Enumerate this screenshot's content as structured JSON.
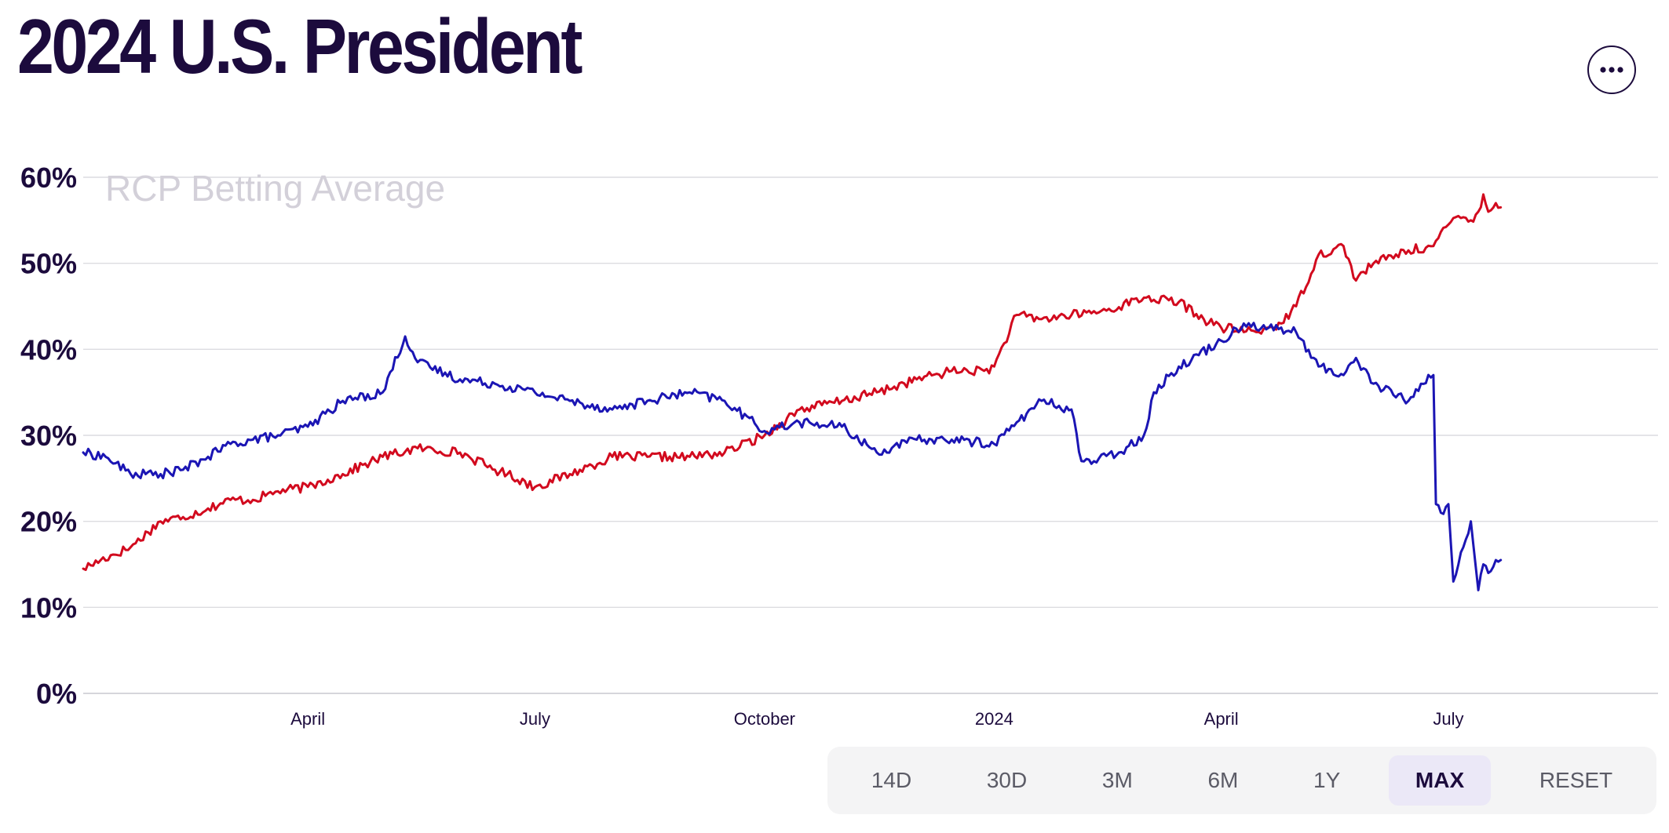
{
  "header": {
    "title": "2024 U.S. President",
    "more_icon": "ellipsis-icon"
  },
  "range_selector": {
    "buttons": [
      "14D",
      "30D",
      "3M",
      "6M",
      "1Y",
      "MAX",
      "RESET"
    ],
    "active": "MAX"
  },
  "chart_data": {
    "type": "line",
    "title": "RCP Betting Average",
    "xlabel": "",
    "ylabel": "",
    "ylim": [
      0,
      60
    ],
    "y_ticks": [
      "0%",
      "10%",
      "20%",
      "30%",
      "40%",
      "50%",
      "60%"
    ],
    "x_tick_labels": [
      "April",
      "July",
      "October",
      "2024",
      "April",
      "July"
    ],
    "x_tick_dates": [
      "2023-04-01",
      "2023-07-01",
      "2023-10-01",
      "2024-01-01",
      "2024-04-01",
      "2024-07-01"
    ],
    "x_range": [
      "2023-01-01",
      "2024-09-23"
    ],
    "grid": true,
    "legend": "none",
    "series": [
      {
        "color": "#d20a1e",
        "x": [
          "2023-01-01",
          "2023-01-08",
          "2023-01-20",
          "2023-02-01",
          "2023-02-10",
          "2023-02-20",
          "2023-03-01",
          "2023-03-10",
          "2023-03-20",
          "2023-04-01",
          "2023-04-15",
          "2023-05-01",
          "2023-05-15",
          "2023-06-01",
          "2023-06-15",
          "2023-06-20",
          "2023-07-01",
          "2023-07-15",
          "2023-08-01",
          "2023-08-15",
          "2023-09-01",
          "2023-09-15",
          "2023-10-01",
          "2023-10-15",
          "2023-11-01",
          "2023-11-15",
          "2023-12-01",
          "2023-12-15",
          "2023-12-28",
          "2024-01-01",
          "2024-01-10",
          "2024-01-20",
          "2024-02-01",
          "2024-02-15",
          "2024-03-01",
          "2024-03-15",
          "2024-03-25",
          "2024-04-01",
          "2024-04-15",
          "2024-04-25",
          "2024-05-01",
          "2024-05-10",
          "2024-05-20",
          "2024-05-25",
          "2024-05-28",
          "2024-06-01",
          "2024-06-15",
          "2024-06-25",
          "2024-07-01",
          "2024-07-05",
          "2024-07-10",
          "2024-07-13",
          "2024-07-15",
          "2024-07-17",
          "2024-07-20",
          "2024-07-22"
        ],
        "values": [
          14.5,
          15.5,
          17,
          20,
          20.5,
          21.5,
          22.5,
          22.5,
          23.5,
          24,
          25.5,
          27.5,
          28.5,
          28,
          26,
          25.5,
          24,
          25.5,
          27.5,
          27.5,
          27.5,
          28,
          30,
          33,
          34,
          35,
          36.5,
          37.5,
          37.5,
          38,
          44,
          43.5,
          44,
          44.5,
          46,
          45.5,
          43.5,
          42.5,
          42,
          43,
          45,
          51,
          52,
          48,
          49,
          50,
          51.5,
          52,
          54.5,
          55.5,
          55,
          56,
          58,
          56,
          57,
          56.5
        ]
      },
      {
        "color": "#1b15b4",
        "x": [
          "2023-01-01",
          "2023-01-10",
          "2023-01-20",
          "2023-02-01",
          "2023-02-10",
          "2023-02-20",
          "2023-03-01",
          "2023-03-10",
          "2023-03-20",
          "2023-04-01",
          "2023-04-15",
          "2023-05-01",
          "2023-05-10",
          "2023-05-15",
          "2023-06-01",
          "2023-06-15",
          "2023-07-01",
          "2023-07-15",
          "2023-08-01",
          "2023-08-15",
          "2023-09-01",
          "2023-09-15",
          "2023-10-01",
          "2023-10-15",
          "2023-11-01",
          "2023-11-15",
          "2023-12-01",
          "2023-12-15",
          "2024-01-01",
          "2024-01-10",
          "2024-01-20",
          "2024-02-01",
          "2024-02-05",
          "2024-02-10",
          "2024-02-20",
          "2024-03-01",
          "2024-03-05",
          "2024-03-15",
          "2024-04-01",
          "2024-04-10",
          "2024-04-20",
          "2024-05-01",
          "2024-05-10",
          "2024-05-20",
          "2024-05-25",
          "2024-06-01",
          "2024-06-15",
          "2024-06-20",
          "2024-06-25",
          "2024-06-26",
          "2024-06-28",
          "2024-07-01",
          "2024-07-03",
          "2024-07-07",
          "2024-07-10",
          "2024-07-13",
          "2024-07-15",
          "2024-07-17",
          "2024-07-20",
          "2024-07-22"
        ],
        "values": [
          28,
          27.5,
          25.5,
          25.5,
          26,
          27.5,
          29,
          29.5,
          30,
          31,
          34,
          35,
          41.5,
          38.5,
          36.5,
          36,
          35,
          34,
          33,
          34,
          35,
          34,
          30.5,
          31.5,
          31,
          28,
          29.5,
          29.5,
          29,
          31.5,
          34,
          33,
          27,
          27,
          28,
          30,
          35,
          38,
          41,
          43,
          42.5,
          42,
          38,
          37,
          39,
          36,
          34,
          36,
          37,
          22,
          21,
          22,
          13,
          17,
          20,
          12,
          15,
          14,
          15.5,
          15.5
        ]
      }
    ]
  }
}
